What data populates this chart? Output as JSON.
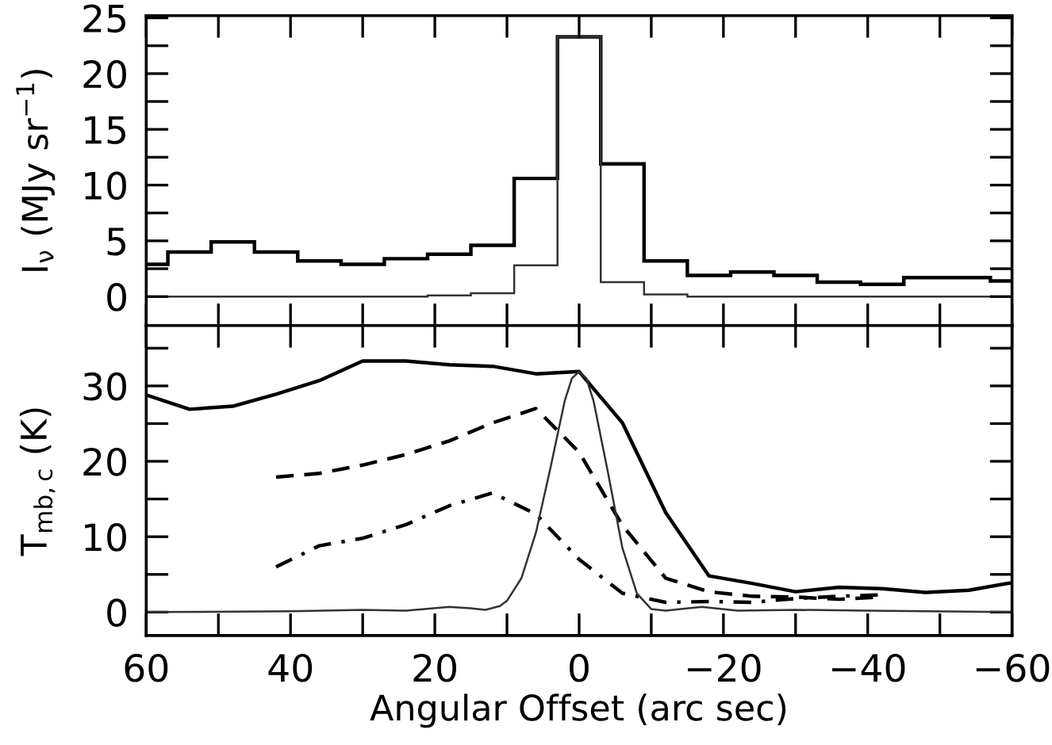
{
  "chart_data": [
    {
      "type": "histogram",
      "ylabel": "I$_{ν}$ (MJy sr$^{−1}$)",
      "tick_labels": "y",
      "grid": false,
      "bins": [
        60,
        57,
        51,
        45,
        39,
        33,
        27,
        21,
        15,
        9,
        3,
        -3,
        -9,
        -15,
        -21,
        -27,
        -33,
        -39,
        -45,
        -51,
        -57,
        -60
      ],
      "xlim": [
        60,
        -60
      ],
      "xticks": [
        60,
        {
          "value": 50,
          "label": null
        },
        40,
        {
          "value": 30,
          "label": null
        },
        20,
        {
          "value": 10,
          "label": null
        },
        0,
        {
          "value": -10,
          "label": null
        },
        -20,
        {
          "value": -30,
          "label": null
        },
        -40,
        {
          "value": -50,
          "label": null
        },
        -60
      ],
      "ylim": [
        -2.6,
        25.2
      ],
      "yticks": [
        0,
        {
          "value": 2.5,
          "label": null
        },
        5,
        {
          "value": 7.5,
          "label": null
        },
        10,
        {
          "value": 12.5,
          "label": null
        },
        15,
        {
          "value": 17.5,
          "label": null
        },
        20,
        {
          "value": 22.5,
          "label": null
        },
        25
      ],
      "series": [
        {
          "color": "#000000",
          "values": [
            2.9,
            4.0,
            4.9,
            4.0,
            3.2,
            2.9,
            3.4,
            3.8,
            4.6,
            10.6,
            23.3,
            11.9,
            3.2,
            1.9,
            2.2,
            1.9,
            1.3,
            1.1,
            1.7,
            1.7,
            1.4
          ]
        },
        {
          "color": "#333333",
          "values": [
            0,
            0,
            0,
            0,
            0,
            0,
            0,
            0.1,
            0.3,
            2.8,
            23.3,
            1.3,
            0.2,
            0,
            0,
            0,
            0,
            0,
            0,
            0,
            0
          ]
        }
      ]
    },
    {
      "type": "line",
      "xlabel": "Angular Offset (arc sec)",
      "ylabel": "T$_{mb,c}$ (K)",
      "grid": false,
      "marker": "none",
      "xlim": [
        60,
        -60
      ],
      "xticks": [
        60,
        {
          "value": 50,
          "label": null
        },
        40,
        {
          "value": 30,
          "label": null
        },
        20,
        {
          "value": 10,
          "label": null
        },
        0,
        {
          "value": -10,
          "label": null
        },
        {
          "value": -20,
          "label": "−20"
        },
        {
          "value": -30,
          "label": null
        },
        {
          "value": -40,
          "label": "−40"
        },
        {
          "value": -50,
          "label": null
        },
        {
          "value": -60,
          "label": "−60"
        }
      ],
      "ylim": [
        -3.1,
        38
      ],
      "yticks": [
        0,
        {
          "value": 5,
          "label": null
        },
        10,
        {
          "value": 15,
          "label": null
        },
        20,
        {
          "value": 25,
          "label": null
        },
        30,
        {
          "value": 35,
          "label": null
        }
      ],
      "series": [
        {
          "color": "#000000",
          "line_style": "solid",
          "x": [
            60,
            54,
            48,
            42,
            36,
            30,
            24,
            18,
            12,
            6,
            0,
            -6,
            -12,
            -18,
            -24,
            -30,
            -36,
            -42,
            -48,
            -54,
            -60
          ],
          "values": [
            28.8,
            26.9,
            27.3,
            28.9,
            30.7,
            33.3,
            33.3,
            32.8,
            32.6,
            31.6,
            31.9,
            25.1,
            13.2,
            4.8,
            3.8,
            2.7,
            3.3,
            3.1,
            2.6,
            2.9,
            3.9
          ]
        },
        {
          "color": "#000000",
          "line_style": "dashed",
          "x": [
            42,
            36,
            30,
            24,
            18,
            12,
            6,
            0,
            -6,
            -12,
            -18,
            -24,
            -30,
            -36,
            -42
          ],
          "values": [
            17.9,
            18.4,
            19.5,
            20.9,
            22.7,
            25.1,
            27.0,
            21.2,
            11.5,
            4.5,
            2.7,
            2.1,
            2.0,
            1.7,
            2.0
          ]
        },
        {
          "color": "#000000",
          "line_style": "dashdot",
          "x": [
            42,
            36,
            30,
            24,
            18,
            12,
            6,
            0,
            -6,
            -12,
            -18,
            -24,
            -30,
            -36,
            -42
          ],
          "values": [
            6.0,
            8.8,
            9.8,
            11.6,
            14.1,
            15.8,
            13.0,
            7.0,
            2.5,
            1.3,
            1.4,
            1.3,
            1.8,
            2.1,
            2.3
          ]
        },
        {
          "color": "#333333",
          "line_style": "solid",
          "x": [
            60,
            40,
            30,
            24,
            18,
            15,
            13,
            11,
            10,
            8,
            6,
            4,
            2,
            1,
            0,
            -1,
            -2,
            -4,
            -6,
            -8,
            -10,
            -12,
            -14,
            -17,
            -22,
            -30,
            -40,
            -60
          ],
          "values": [
            0,
            0.1,
            0.3,
            0.2,
            0.7,
            0.5,
            0.3,
            0.8,
            1.5,
            4.5,
            10.5,
            19.0,
            28.0,
            31.0,
            31.9,
            31.0,
            28.0,
            18.5,
            8.5,
            2.5,
            0.4,
            0.2,
            0.4,
            0.7,
            0.2,
            0.3,
            0.2,
            0
          ]
        }
      ]
    }
  ]
}
